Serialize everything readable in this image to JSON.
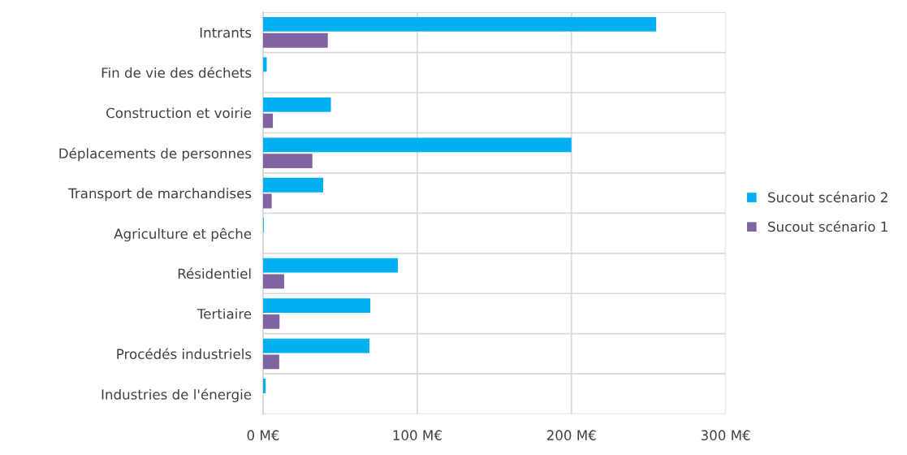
{
  "chart_data": {
    "type": "bar",
    "orientation": "horizontal",
    "categories": [
      "Intrants",
      "Fin de vie des déchets",
      "Construction et voirie",
      "Déplacements de personnes",
      "Transport de marchandises",
      "Agriculture et pêche",
      "Résidentiel",
      "Tertiaire",
      "Procédés industriels",
      "Industries de l'énergie"
    ],
    "series": [
      {
        "name": "Sucout scénario 2",
        "color": "#00b0f0",
        "values": [
          255,
          2.4,
          44,
          200,
          39,
          0.5,
          87.5,
          69.6,
          69,
          1.7
        ]
      },
      {
        "name": "Sucout scénario 1",
        "color": "#8064a2",
        "values": [
          42,
          0,
          6.4,
          32,
          5.6,
          0,
          13.7,
          10.7,
          10.5,
          0
        ]
      }
    ],
    "xlim": [
      0,
      300
    ],
    "xticks": [
      {
        "value": 0,
        "label": "0 M€"
      },
      {
        "value": 100,
        "label": "100 M€"
      },
      {
        "value": 200,
        "label": "200 M€"
      },
      {
        "value": 300,
        "label": "300 M€"
      }
    ],
    "grid": true,
    "legend": "right"
  }
}
